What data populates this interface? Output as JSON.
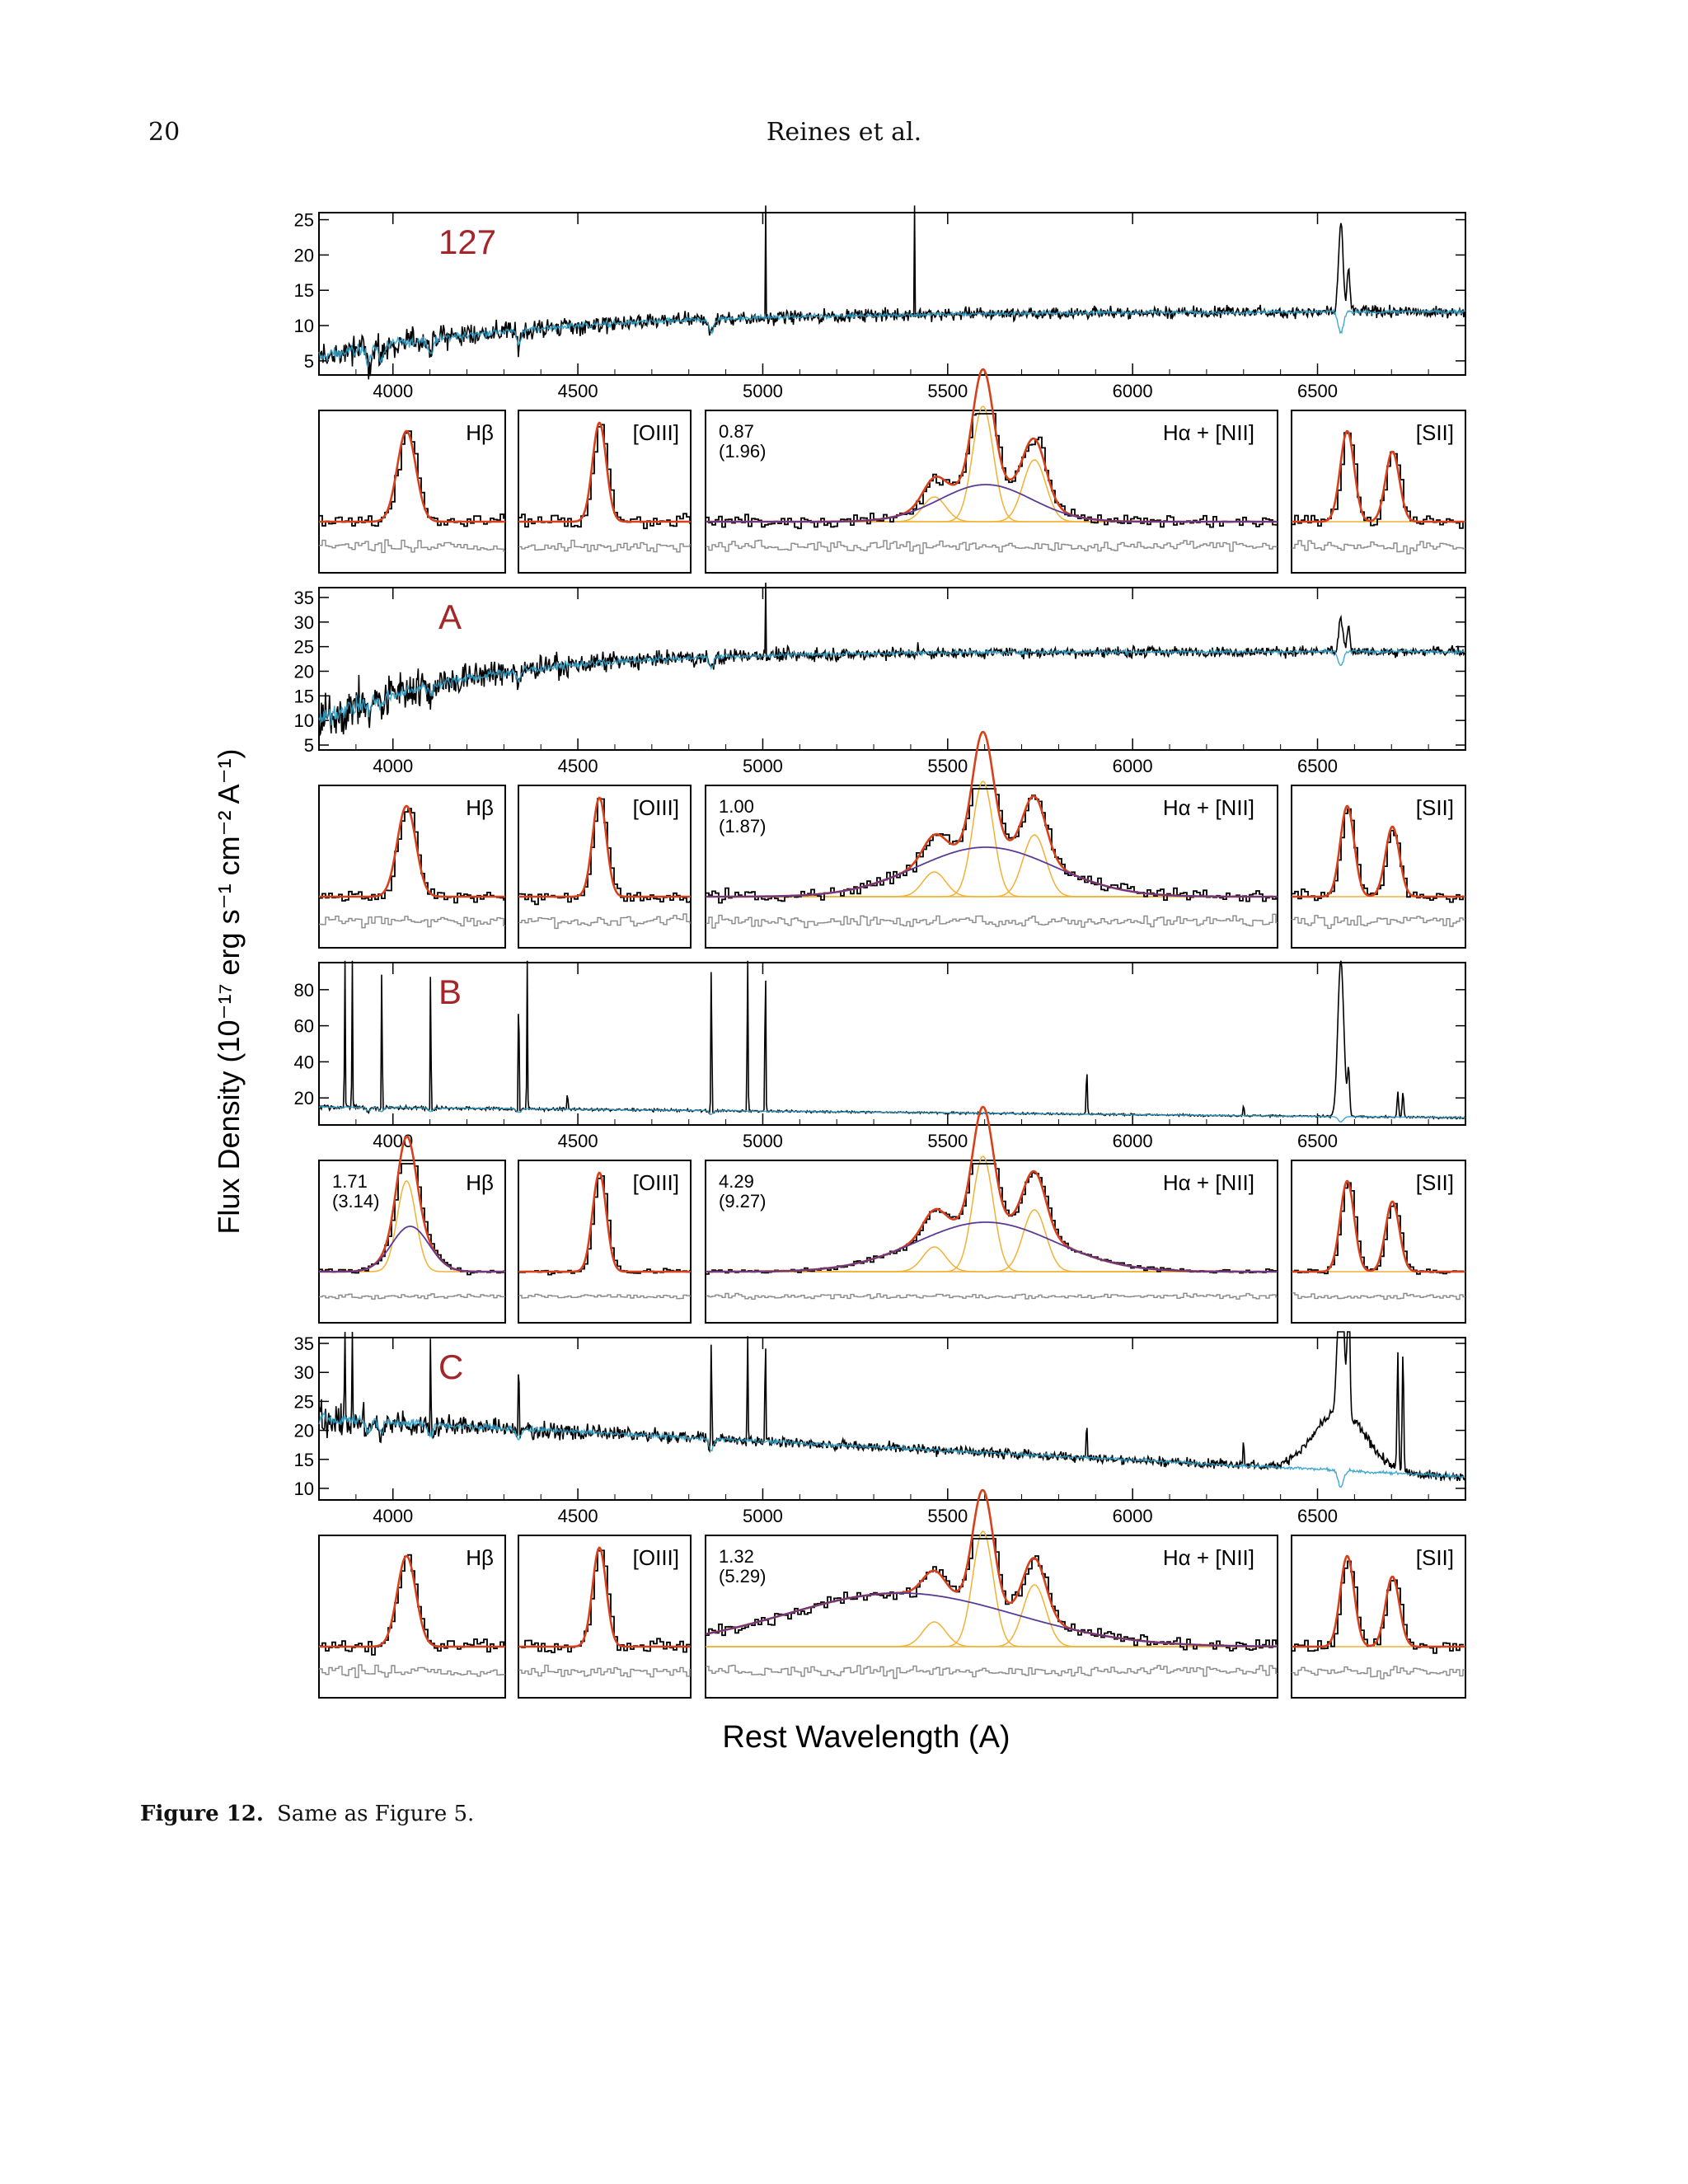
{
  "header": {
    "page_number": "20",
    "running_title": "Reines et al."
  },
  "figure": {
    "y_label": "Flux Density (10⁻¹⁷ erg s⁻¹ cm⁻² A⁻¹)",
    "x_label": "Rest Wavelength (A)",
    "wavelength_ticks": [
      "4000",
      "4500",
      "5000",
      "5500",
      "6000",
      "6500"
    ],
    "line_labels": {
      "hb": "Hβ",
      "oiii": "[OIII]",
      "ha": "Hα + [NII]",
      "sii": "[SII]"
    },
    "colors": {
      "object_label": "#a3262a",
      "data": "#000000",
      "model": "#2ea0c8",
      "total_fit": "#d8401a",
      "broad": "#5a3a96",
      "narrow": "#f2b134",
      "residual": "#888888"
    }
  },
  "chart_data": [
    {
      "type": "line",
      "object": "127",
      "x_axis": "Rest wavelength",
      "xlim": [
        3800,
        6900
      ],
      "yticks": [
        5,
        10,
        15,
        20,
        25
      ],
      "ylim": [
        3,
        26
      ],
      "series": [],
      "line_fits": {
        "ha_values": [
          "0.87",
          "(1.96)"
        ],
        "hb_values": []
      }
    },
    {
      "type": "line",
      "object": "A",
      "x_axis": "Rest wavelength",
      "xlim": [
        3800,
        6900
      ],
      "yticks": [
        5,
        10,
        15,
        20,
        25,
        30,
        35
      ],
      "ylim": [
        4,
        37
      ],
      "series": [],
      "line_fits": {
        "ha_values": [
          "1.00",
          "(1.87)"
        ],
        "hb_values": []
      }
    },
    {
      "type": "line",
      "object": "B",
      "x_axis": "Rest wavelength",
      "xlim": [
        3800,
        6900
      ],
      "yticks": [
        20,
        40,
        60,
        80
      ],
      "ylim": [
        5,
        95
      ],
      "series": [],
      "line_fits": {
        "ha_values": [
          "4.29",
          "(9.27)"
        ],
        "hb_values": [
          "1.71",
          "(3.14)"
        ]
      }
    },
    {
      "type": "line",
      "object": "C",
      "x_axis": "Rest wavelength",
      "xlim": [
        3800,
        6900
      ],
      "yticks": [
        10,
        15,
        20,
        25,
        30,
        35
      ],
      "ylim": [
        8,
        36
      ],
      "series": [],
      "line_fits": {
        "ha_values": [
          "1.32",
          "(5.29)"
        ],
        "hb_values": []
      }
    }
  ],
  "caption": {
    "label": "Figure 12.",
    "text": "Same as Figure 5."
  }
}
